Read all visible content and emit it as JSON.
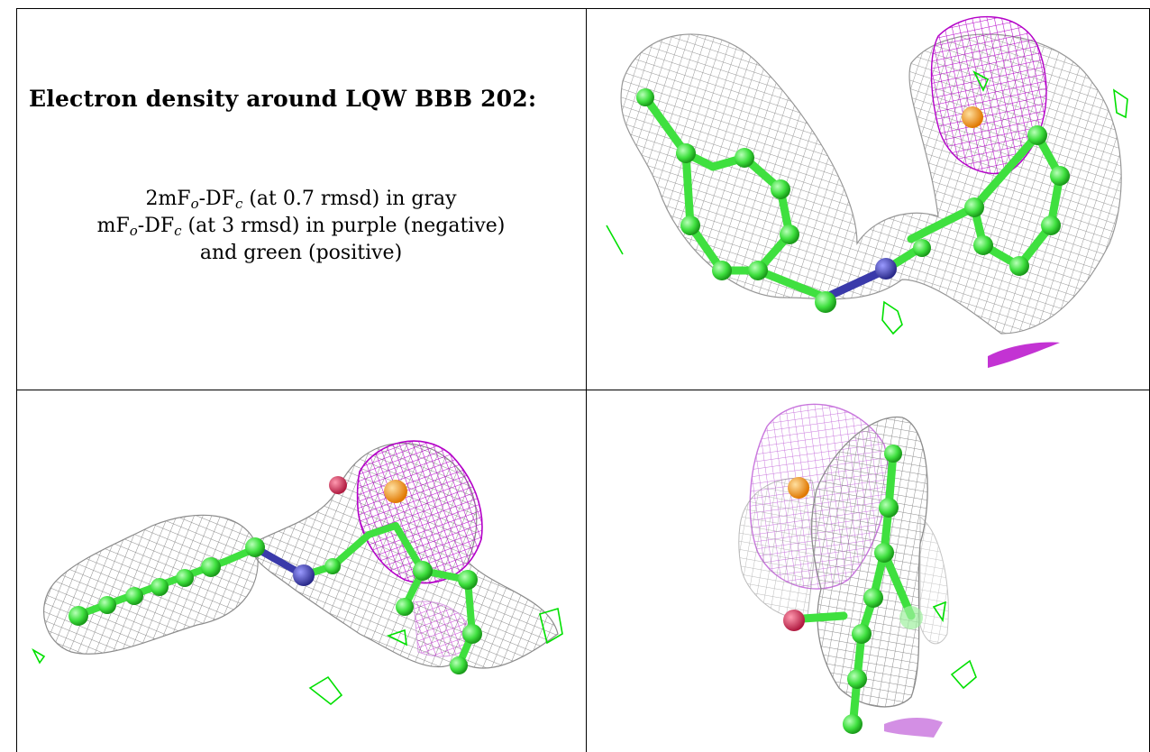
{
  "caption": {
    "title": "Electron density around LQW BBB 202:",
    "line1": {
      "a": "2mF",
      "o": "o",
      "b": "-DF",
      "c": "c",
      "rest": " (at 0.7 rmsd) in gray"
    },
    "line2": {
      "a": "mF",
      "o": "o",
      "b": "-DF",
      "c": "c",
      "rest": " (at 3 rmsd) in purple (negative)"
    },
    "line3": "and green (positive)"
  },
  "colors": {
    "gray_mesh": "#8c8c8c",
    "negative_mesh": "#b400c8",
    "positive_mesh": "#00e000",
    "carbon": "#4de84d",
    "nitrogen": "#3a3aaa",
    "sulfur_or_metal": "#ff9a00",
    "oxygen": "#d83a5a",
    "border": "#000000"
  },
  "panels": [
    {
      "name": "view-top-right"
    },
    {
      "name": "view-bottom-left"
    },
    {
      "name": "view-bottom-right"
    }
  ]
}
